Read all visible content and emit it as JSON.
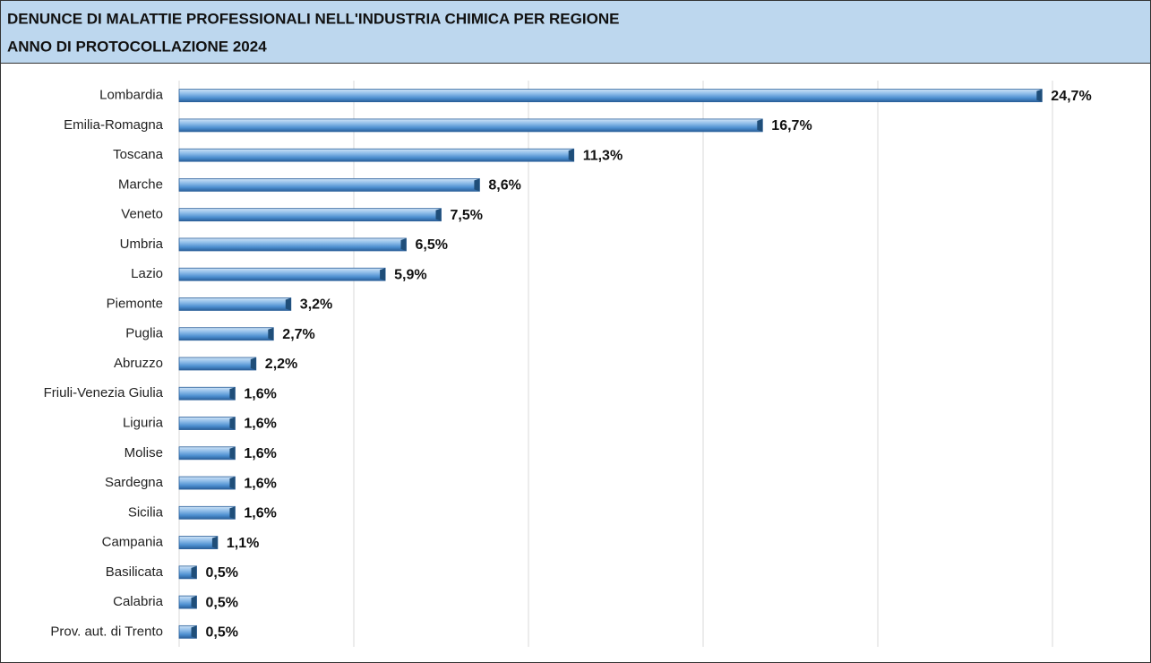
{
  "chart_data": {
    "type": "bar",
    "orientation": "horizontal",
    "title": "DENUNCE DI MALATTIE PROFESSIONALI NELL'INDUSTRIA CHIMICA PER REGIONE",
    "subtitle": "ANNO DI PROTOCOLLAZIONE 2024",
    "categories": [
      "Lombardia",
      "Emilia-Romagna",
      "Toscana",
      "Marche",
      "Veneto",
      "Umbria",
      "Lazio",
      "Piemonte",
      "Puglia",
      "Abruzzo",
      "Friuli-Venezia Giulia",
      "Liguria",
      "Molise",
      "Sardegna",
      "Sicilia",
      "Campania",
      "Basilicata",
      "Calabria",
      "Prov. aut. di Trento"
    ],
    "values": [
      24.7,
      16.7,
      11.3,
      8.6,
      7.5,
      6.5,
      5.9,
      3.2,
      2.7,
      2.2,
      1.6,
      1.6,
      1.6,
      1.6,
      1.6,
      1.1,
      0.5,
      0.5,
      0.5
    ],
    "value_labels": [
      "24,7%",
      "16,7%",
      "11,3%",
      "8,6%",
      "7,5%",
      "6,5%",
      "5,9%",
      "3,2%",
      "2,7%",
      "2,2%",
      "1,6%",
      "1,6%",
      "1,6%",
      "1,6%",
      "1,6%",
      "1,1%",
      "0,5%",
      "0,5%",
      "0,5%"
    ],
    "color": "#5b9bd5",
    "xlim": [
      0,
      25
    ],
    "xticks": [
      0,
      5,
      10,
      15,
      20,
      25
    ],
    "grid": true
  }
}
